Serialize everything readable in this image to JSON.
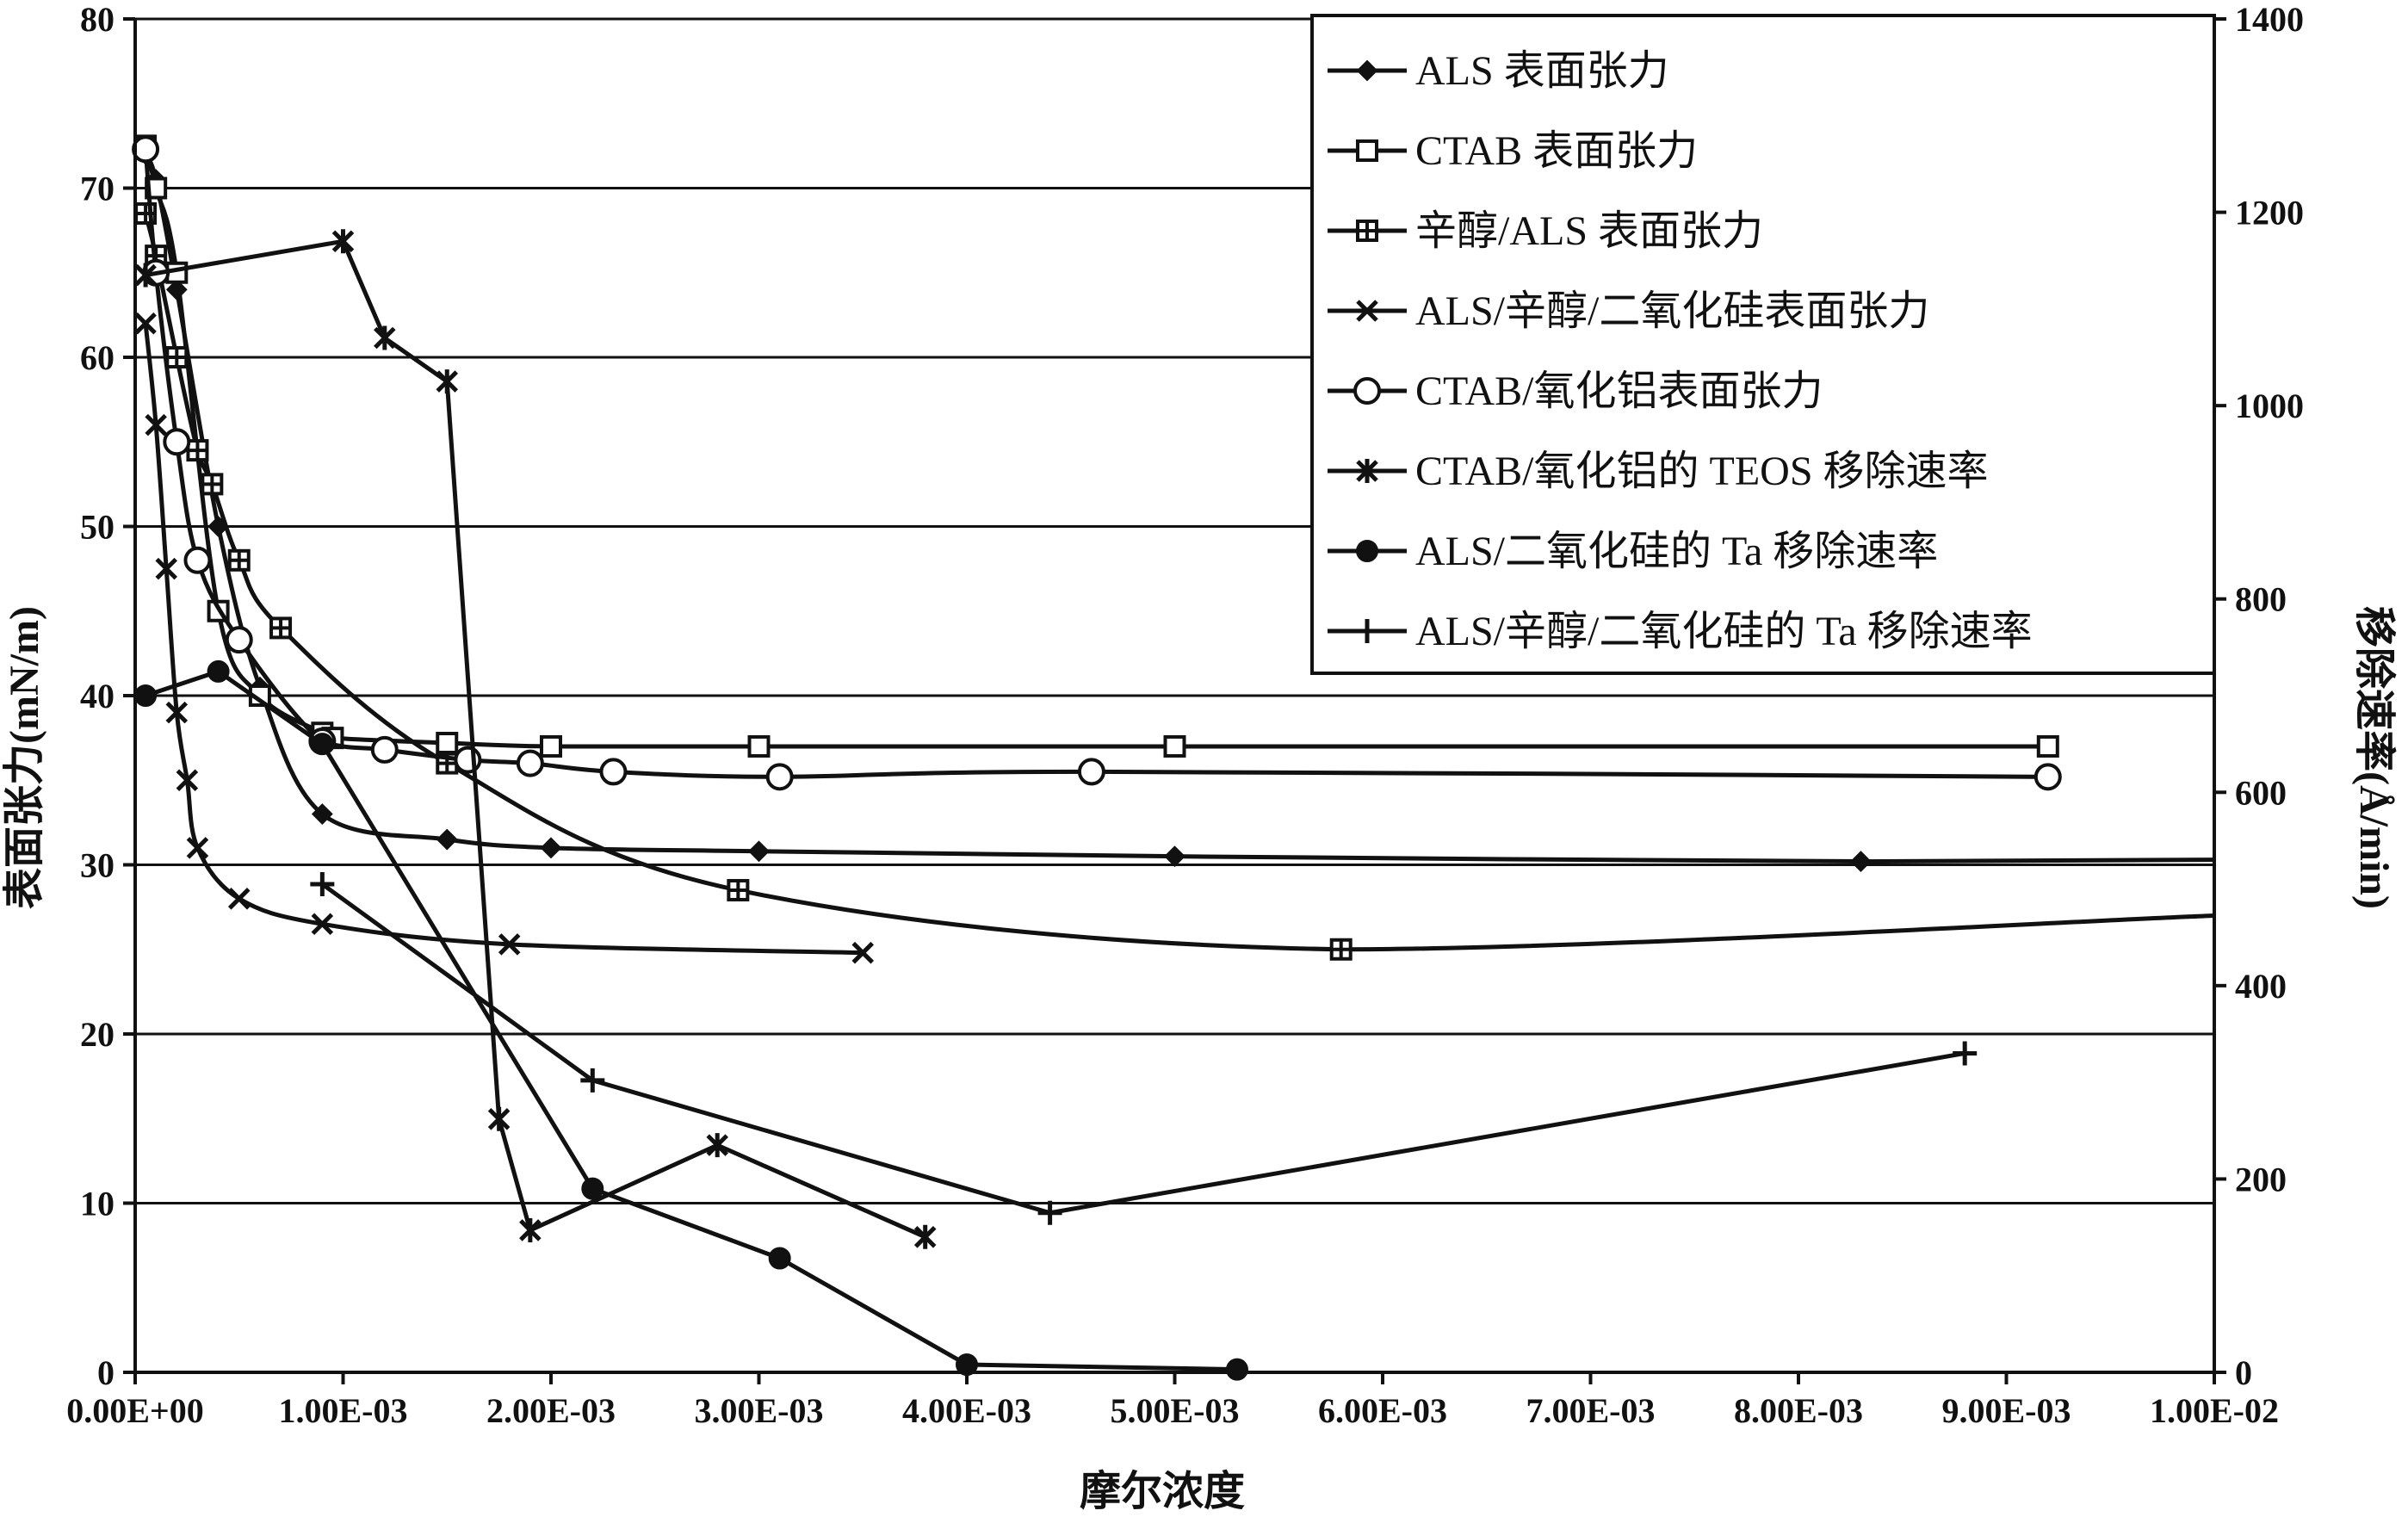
{
  "chart_data": {
    "type": "line",
    "xlabel": "摩尔浓度",
    "ylabel_left": "表面张力(mN/m)",
    "ylabel_right": "移除速率(Å/min)",
    "xlim": [
      0,
      0.01
    ],
    "ylim_left": [
      0,
      80
    ],
    "ylim_right": [
      0,
      1400
    ],
    "x_ticks": [
      0,
      0.001,
      0.002,
      0.003,
      0.004,
      0.005,
      0.006,
      0.007,
      0.008,
      0.009,
      0.01
    ],
    "x_tick_labels": [
      "0.00E+00",
      "1.00E-03",
      "2.00E-03",
      "3.00E-03",
      "4.00E-03",
      "5.00E-03",
      "6.00E-03",
      "7.00E-03",
      "8.00E-03",
      "9.00E-03",
      "1.00E-02"
    ],
    "y_left_ticks": [
      0,
      10,
      20,
      30,
      40,
      50,
      60,
      70,
      80
    ],
    "y_left_tick_labels": [
      "0",
      "10",
      "20",
      "30",
      "40",
      "50",
      "60",
      "70",
      "80"
    ],
    "y_right_ticks": [
      0,
      200,
      400,
      600,
      800,
      1000,
      1200,
      1400
    ],
    "y_right_tick_labels": [
      "0",
      "200",
      "400",
      "600",
      "800",
      "1000",
      "1200",
      "1400"
    ],
    "grid": "horizontal",
    "legend_position": "top-right",
    "series": [
      {
        "name": "ALS 表面张力",
        "axis": "left",
        "marker": "diamond",
        "smooth": true,
        "x": [
          5e-05,
          0.0001,
          0.0002,
          0.0004,
          0.0006,
          0.0009,
          0.0015,
          0.002,
          0.003,
          0.005,
          0.0083,
          0.01
        ],
        "y": [
          72,
          70.5,
          64,
          50,
          40.5,
          33,
          31.5,
          31,
          30.8,
          30.5,
          30.2,
          30.3
        ]
      },
      {
        "name": "CTAB 表面张力",
        "axis": "left",
        "marker": "square",
        "smooth": true,
        "x": [
          5e-05,
          0.0001,
          0.0002,
          0.0004,
          0.0006,
          0.0009,
          0.00095,
          0.0015,
          0.002,
          0.003,
          0.005,
          0.0092
        ],
        "y": [
          72.5,
          70,
          65,
          45,
          40,
          37.8,
          37.5,
          37.2,
          37,
          37,
          37,
          37
        ]
      },
      {
        "name": "辛醇/ALS 表面张力",
        "axis": "left",
        "marker": "plus-square",
        "smooth": true,
        "x": [
          5e-05,
          0.0001,
          0.0002,
          0.0003,
          0.00037,
          0.0005,
          0.0007,
          0.0015,
          0.0029,
          0.0058,
          0.01
        ],
        "y": [
          68.5,
          66,
          60,
          54.5,
          52.5,
          48,
          44,
          36,
          28.5,
          25,
          27
        ]
      },
      {
        "name": "ALS/辛醇/二氧化硅表面张力",
        "axis": "left",
        "marker": "x",
        "smooth": true,
        "x": [
          5e-05,
          0.0001,
          0.00015,
          0.0002,
          0.00025,
          0.0003,
          0.0005,
          0.0009,
          0.0018,
          0.0035
        ],
        "y": [
          62,
          56,
          47.5,
          39,
          35,
          31,
          28,
          26.5,
          25.3,
          24.8
        ]
      },
      {
        "name": "CTAB/氧化铝表面张力",
        "axis": "left",
        "marker": "circle",
        "smooth": true,
        "x": [
          5e-05,
          0.0001,
          0.0002,
          0.0003,
          0.0005,
          0.0009,
          0.0012,
          0.0016,
          0.0019,
          0.0023,
          0.0031,
          0.0046,
          0.0092
        ],
        "y": [
          72.3,
          65,
          55,
          48,
          43.3,
          37.3,
          36.8,
          36.2,
          36,
          35.5,
          35.2,
          35.5,
          35.2
        ]
      },
      {
        "name": "CTAB/氧化铝的 TEOS 移除速率",
        "axis": "right",
        "marker": "asterisk",
        "smooth": false,
        "x": [
          5e-05,
          0.001,
          0.0012,
          0.0015,
          0.00175,
          0.0019,
          0.0028,
          0.0038
        ],
        "y": [
          1135,
          1170,
          1070,
          1025,
          262,
          147,
          235,
          140
        ]
      },
      {
        "name": "ALS/二氧化硅的 Ta 移除速率",
        "axis": "right",
        "marker": "filled-circle",
        "smooth": false,
        "x": [
          5e-05,
          0.0004,
          0.0009,
          0.0022,
          0.0031,
          0.004,
          0.0053
        ],
        "y": [
          700,
          725,
          650,
          190,
          118,
          8,
          3
        ]
      },
      {
        "name": "ALS/辛醇/二氧化硅的 Ta 移除速率",
        "axis": "right",
        "marker": "plus",
        "smooth": false,
        "x": [
          0.0009,
          0.0022,
          0.0044,
          0.0088
        ],
        "y": [
          505,
          302,
          165,
          330
        ]
      }
    ]
  }
}
